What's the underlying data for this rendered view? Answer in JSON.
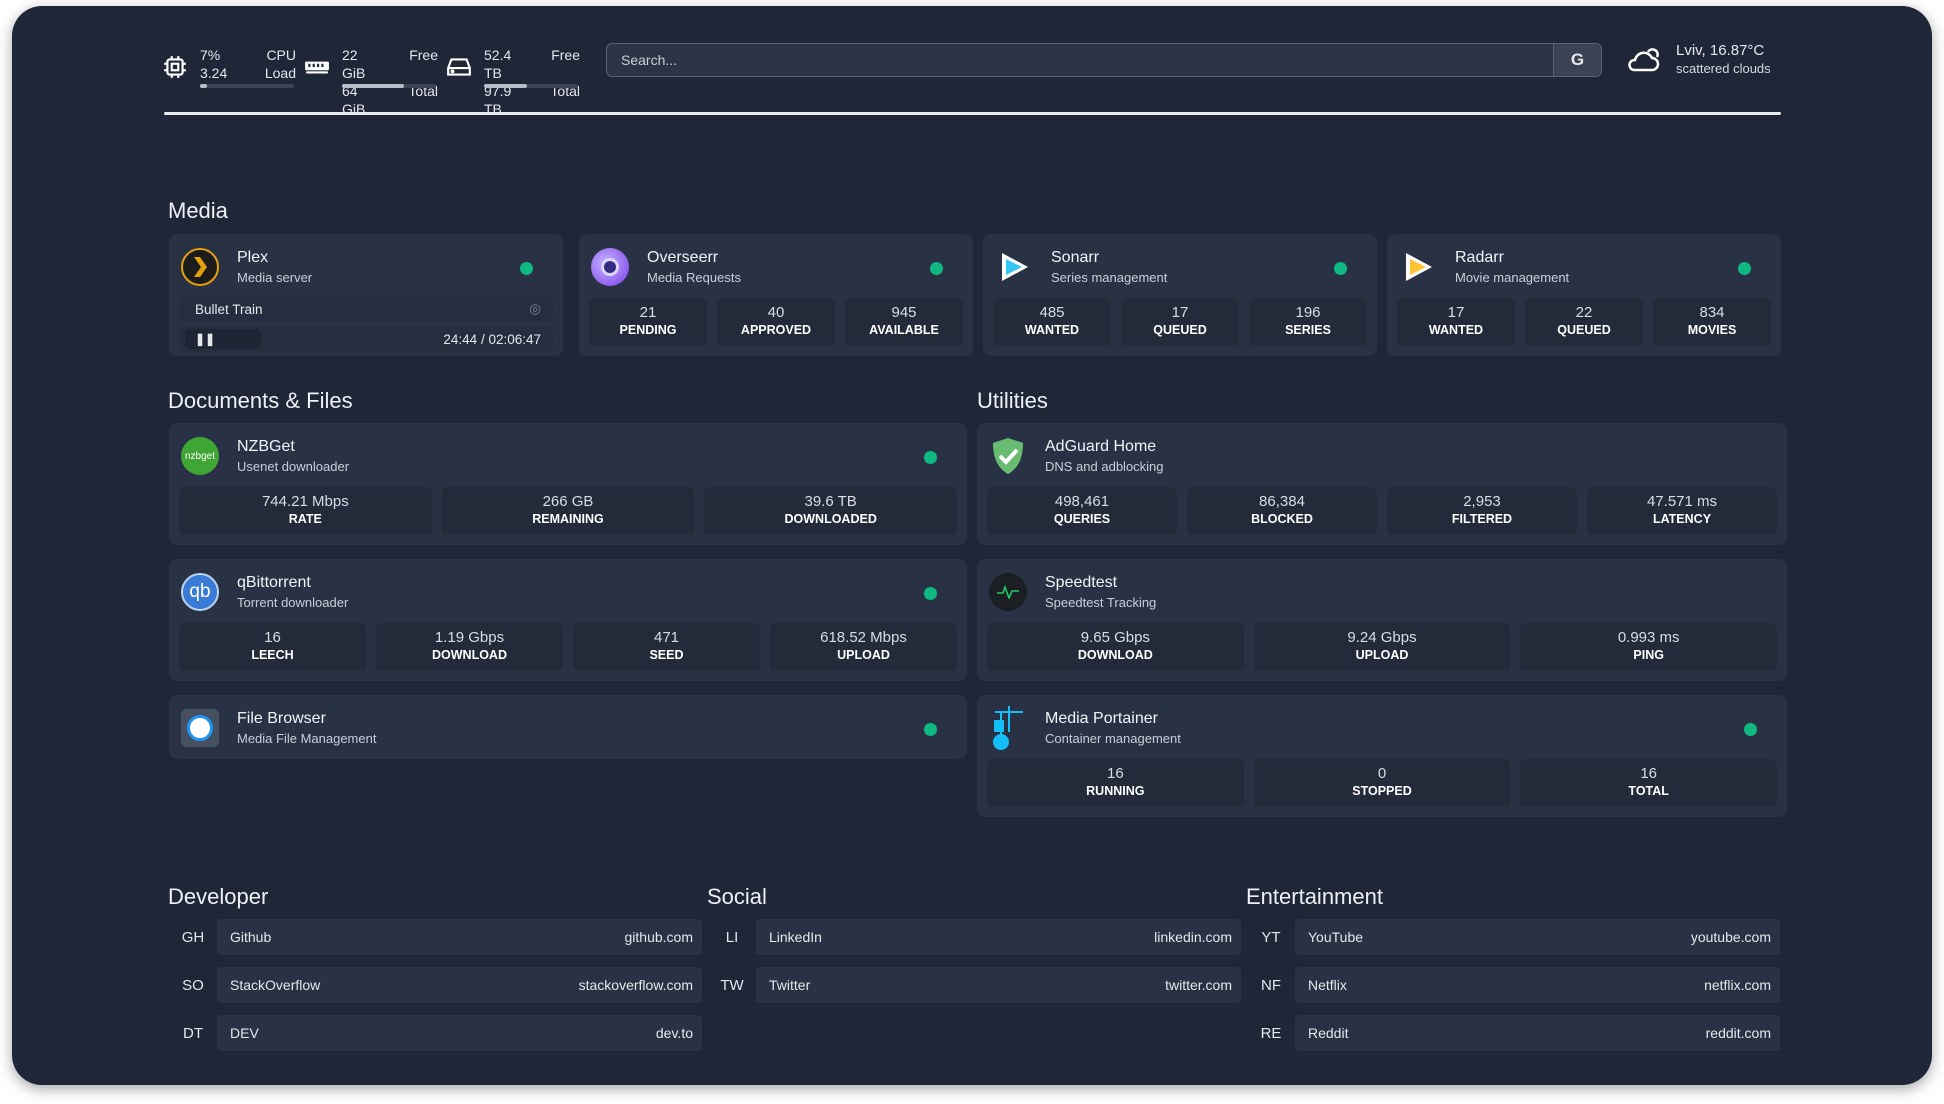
{
  "header": {
    "cpu": {
      "icon": "cpu-icon",
      "value1": "7%",
      "value2": "3.24",
      "label1": "CPU",
      "label2": "Load",
      "usage": 0.07
    },
    "memory": {
      "icon": "memory-icon",
      "value1": "22 GiB",
      "value2": "64 GiB",
      "label1": "Free",
      "label2": "Total",
      "usage": 0.66
    },
    "disk": {
      "icon": "disk-icon",
      "value1": "52.4 TB",
      "value2": "97.9 TB",
      "label1": "Free",
      "label2": "Total",
      "usage": 0.46
    },
    "search": {
      "placeholder": "Search...",
      "provider_label": "G"
    },
    "weather": {
      "icon": "cloud-icon",
      "location_temp": "Lviv, 16.87°C",
      "condition": "scattered clouds"
    }
  },
  "colors": {
    "status_online": "#10b981",
    "background": "#1f2638",
    "card": "#293244"
  },
  "sections": {
    "media": "Media",
    "documents": "Documents & Files",
    "utilities": "Utilities",
    "developer": "Developer",
    "social": "Social",
    "entertainment": "Entertainment"
  },
  "plex": {
    "name": "Plex",
    "desc": "Media server",
    "icon": "plex-icon",
    "now_playing": "Bullet Train",
    "progress_time": "24:44 / 02:06:47",
    "state": "paused"
  },
  "services": [
    {
      "name": "Overseerr",
      "desc": "Media Requests",
      "icon": "overseerr-icon",
      "stats": [
        {
          "v": "21",
          "l": "PENDING"
        },
        {
          "v": "40",
          "l": "APPROVED"
        },
        {
          "v": "945",
          "l": "AVAILABLE"
        }
      ]
    },
    {
      "name": "Sonarr",
      "desc": "Series management",
      "icon": "sonarr-icon",
      "stats": [
        {
          "v": "485",
          "l": "WANTED"
        },
        {
          "v": "17",
          "l": "QUEUED"
        },
        {
          "v": "196",
          "l": "SERIES"
        }
      ]
    },
    {
      "name": "Radarr",
      "desc": "Movie management",
      "icon": "radarr-icon",
      "stats": [
        {
          "v": "17",
          "l": "WANTED"
        },
        {
          "v": "22",
          "l": "QUEUED"
        },
        {
          "v": "834",
          "l": "MOVIES"
        }
      ]
    },
    {
      "name": "NZBGet",
      "desc": "Usenet downloader",
      "icon": "nzbget-icon",
      "stats": [
        {
          "v": "744.21 Mbps",
          "l": "RATE"
        },
        {
          "v": "266 GB",
          "l": "REMAINING"
        },
        {
          "v": "39.6 TB",
          "l": "DOWNLOADED"
        }
      ]
    },
    {
      "name": "qBittorrent",
      "desc": "Torrent downloader",
      "icon": "qbittorrent-icon",
      "stats": [
        {
          "v": "16",
          "l": "LEECH"
        },
        {
          "v": "1.19 Gbps",
          "l": "DOWNLOAD"
        },
        {
          "v": "471",
          "l": "SEED"
        },
        {
          "v": "618.52 Mbps",
          "l": "UPLOAD"
        }
      ]
    },
    {
      "name": "File Browser",
      "desc": "Media File Management",
      "icon": "file-browser-icon",
      "stats": []
    },
    {
      "name": "AdGuard Home",
      "desc": "DNS and adblocking",
      "icon": "adguard-icon",
      "stats": [
        {
          "v": "498,461",
          "l": "QUERIES"
        },
        {
          "v": "86,384",
          "l": "BLOCKED"
        },
        {
          "v": "2,953",
          "l": "FILTERED"
        },
        {
          "v": "47.571 ms",
          "l": "LATENCY"
        }
      ]
    },
    {
      "name": "Speedtest",
      "desc": "Speedtest Tracking",
      "icon": "speedtest-icon",
      "stats": [
        {
          "v": "9.65 Gbps",
          "l": "DOWNLOAD"
        },
        {
          "v": "9.24 Gbps",
          "l": "UPLOAD"
        },
        {
          "v": "0.993 ms",
          "l": "PING"
        }
      ]
    },
    {
      "name": "Media Portainer",
      "desc": "Container management",
      "icon": "portainer-icon",
      "stats": [
        {
          "v": "16",
          "l": "RUNNING"
        },
        {
          "v": "0",
          "l": "STOPPED"
        },
        {
          "v": "16",
          "l": "TOTAL"
        }
      ]
    }
  ],
  "bookmarks": {
    "developer": [
      {
        "abbr": "GH",
        "name": "Github",
        "url": "github.com"
      },
      {
        "abbr": "SO",
        "name": "StackOverflow",
        "url": "stackoverflow.com"
      },
      {
        "abbr": "DT",
        "name": "DEV",
        "url": "dev.to"
      }
    ],
    "social": [
      {
        "abbr": "LI",
        "name": "LinkedIn",
        "url": "linkedin.com"
      },
      {
        "abbr": "TW",
        "name": "Twitter",
        "url": "twitter.com"
      }
    ],
    "entertainment": [
      {
        "abbr": "YT",
        "name": "YouTube",
        "url": "youtube.com"
      },
      {
        "abbr": "NF",
        "name": "Netflix",
        "url": "netflix.com"
      },
      {
        "abbr": "RE",
        "name": "Reddit",
        "url": "reddit.com"
      }
    ]
  }
}
